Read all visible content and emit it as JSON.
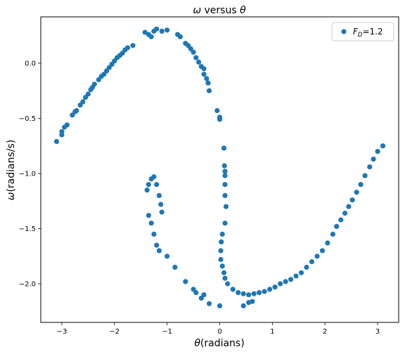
{
  "chart_data": {
    "type": "scatter",
    "title_parts": [
      "ω",
      " versus ",
      "θ"
    ],
    "xlabel_parts": [
      "θ",
      "(radians)"
    ],
    "ylabel_parts": [
      "ω",
      "(radians/s)"
    ],
    "xlim": [
      -3.4,
      3.4
    ],
    "ylim": [
      -2.35,
      0.42
    ],
    "xticks": [
      -3,
      -2,
      -1,
      0,
      1,
      2,
      3
    ],
    "xtick_labels": [
      "−3",
      "−2",
      "−1",
      "0",
      "1",
      "2",
      "3"
    ],
    "yticks": [
      0.0,
      -0.5,
      -1.0,
      -1.5,
      -2.0
    ],
    "ytick_labels": [
      "0.0",
      "−0.5",
      "−1.0",
      "−1.5",
      "−2.0"
    ],
    "grid": false,
    "legend_position": "top-right",
    "series": [
      {
        "name_parts": [
          "F",
          "D",
          "=1.2"
        ],
        "color": "#1f77b4",
        "points": [
          [
            -3.1,
            -0.71
          ],
          [
            -3.0,
            -0.65
          ],
          [
            -3.0,
            -0.62
          ],
          [
            -2.95,
            -0.58
          ],
          [
            -2.9,
            -0.56
          ],
          [
            -2.8,
            -0.47
          ],
          [
            -2.75,
            -0.44
          ],
          [
            -2.72,
            -0.43
          ],
          [
            -2.65,
            -0.38
          ],
          [
            -2.6,
            -0.35
          ],
          [
            -2.55,
            -0.31
          ],
          [
            -2.5,
            -0.28
          ],
          [
            -2.45,
            -0.24
          ],
          [
            -2.42,
            -0.22
          ],
          [
            -2.38,
            -0.19
          ],
          [
            -2.3,
            -0.15
          ],
          [
            -2.25,
            -0.12
          ],
          [
            -2.2,
            -0.1
          ],
          [
            -2.15,
            -0.07
          ],
          [
            -2.1,
            -0.04
          ],
          [
            -2.05,
            -0.01
          ],
          [
            -2.0,
            0.02
          ],
          [
            -1.95,
            0.05
          ],
          [
            -1.9,
            0.07
          ],
          [
            -1.85,
            0.09
          ],
          [
            -1.8,
            0.12
          ],
          [
            -1.75,
            0.14
          ],
          [
            -1.65,
            0.16
          ],
          [
            -1.42,
            0.28
          ],
          [
            -1.35,
            0.26
          ],
          [
            -1.3,
            0.24
          ],
          [
            -1.25,
            0.29
          ],
          [
            -1.2,
            0.31
          ],
          [
            -1.1,
            0.29
          ],
          [
            -1.0,
            0.3
          ],
          [
            -0.8,
            0.26
          ],
          [
            -0.75,
            0.24
          ],
          [
            -0.65,
            0.18
          ],
          [
            -0.6,
            0.16
          ],
          [
            -0.55,
            0.13
          ],
          [
            -0.5,
            0.1
          ],
          [
            -0.45,
            0.05
          ],
          [
            -0.4,
            0.01
          ],
          [
            -0.35,
            -0.03
          ],
          [
            -0.3,
            -0.05
          ],
          [
            -0.3,
            -0.1
          ],
          [
            -0.25,
            -0.14
          ],
          [
            -0.22,
            -0.18
          ],
          [
            -0.2,
            -0.25
          ],
          [
            -0.05,
            -0.43
          ],
          [
            0.0,
            -0.49
          ],
          [
            0.0,
            -0.51
          ],
          [
            0.08,
            -0.77
          ],
          [
            0.09,
            -0.93
          ],
          [
            0.1,
            -0.98
          ],
          [
            0.1,
            -1.02
          ],
          [
            0.1,
            -1.1
          ],
          [
            0.1,
            -1.2
          ],
          [
            0.12,
            -1.3
          ],
          [
            0.1,
            -1.45
          ],
          [
            0.05,
            -1.55
          ],
          [
            0.03,
            -1.62
          ],
          [
            0.02,
            -1.7
          ],
          [
            0.02,
            -1.78
          ],
          [
            0.05,
            -1.84
          ],
          [
            0.08,
            -1.9
          ],
          [
            0.1,
            -1.95
          ],
          [
            0.15,
            -2.0
          ],
          [
            0.25,
            -2.05
          ],
          [
            0.35,
            -2.08
          ],
          [
            0.45,
            -2.09
          ],
          [
            0.55,
            -2.1
          ],
          [
            0.65,
            -2.09
          ],
          [
            0.75,
            -2.08
          ],
          [
            0.85,
            -2.07
          ],
          [
            0.95,
            -2.05
          ],
          [
            1.05,
            -2.03
          ],
          [
            1.15,
            -2.0
          ],
          [
            1.25,
            -1.98
          ],
          [
            1.35,
            -1.96
          ],
          [
            1.45,
            -1.93
          ],
          [
            1.55,
            -1.9
          ],
          [
            1.65,
            -1.85
          ],
          [
            1.75,
            -1.8
          ],
          [
            1.85,
            -1.75
          ],
          [
            1.95,
            -1.7
          ],
          [
            2.05,
            -1.63
          ],
          [
            2.15,
            -1.55
          ],
          [
            2.22,
            -1.48
          ],
          [
            2.3,
            -1.42
          ],
          [
            2.38,
            -1.36
          ],
          [
            2.45,
            -1.3
          ],
          [
            2.52,
            -1.24
          ],
          [
            2.6,
            -1.17
          ],
          [
            2.68,
            -1.1
          ],
          [
            2.76,
            -1.02
          ],
          [
            2.85,
            -0.94
          ],
          [
            2.92,
            -0.87
          ],
          [
            3.0,
            -0.8
          ],
          [
            3.1,
            -0.75
          ],
          [
            -1.38,
            -1.15
          ],
          [
            -1.35,
            -1.1
          ],
          [
            -1.3,
            -1.05
          ],
          [
            -1.25,
            -1.03
          ],
          [
            -1.2,
            -1.1
          ],
          [
            -1.15,
            -1.2
          ],
          [
            -1.12,
            -1.28
          ],
          [
            -1.1,
            -1.35
          ],
          [
            -1.35,
            -1.38
          ],
          [
            -1.3,
            -1.45
          ],
          [
            -1.25,
            -1.55
          ],
          [
            -1.2,
            -1.65
          ],
          [
            -1.15,
            -1.7
          ],
          [
            -1.0,
            -1.75
          ],
          [
            -0.85,
            -1.85
          ],
          [
            -0.65,
            -1.98
          ],
          [
            -0.45,
            -2.08
          ],
          [
            -0.35,
            -2.13
          ],
          [
            -0.2,
            -2.18
          ],
          [
            0.0,
            -2.2
          ],
          [
            -0.5,
            -2.05
          ],
          [
            -0.3,
            -2.1
          ],
          [
            0.45,
            -2.2
          ],
          [
            0.55,
            -2.17
          ],
          [
            0.62,
            -2.16
          ]
        ]
      }
    ]
  }
}
